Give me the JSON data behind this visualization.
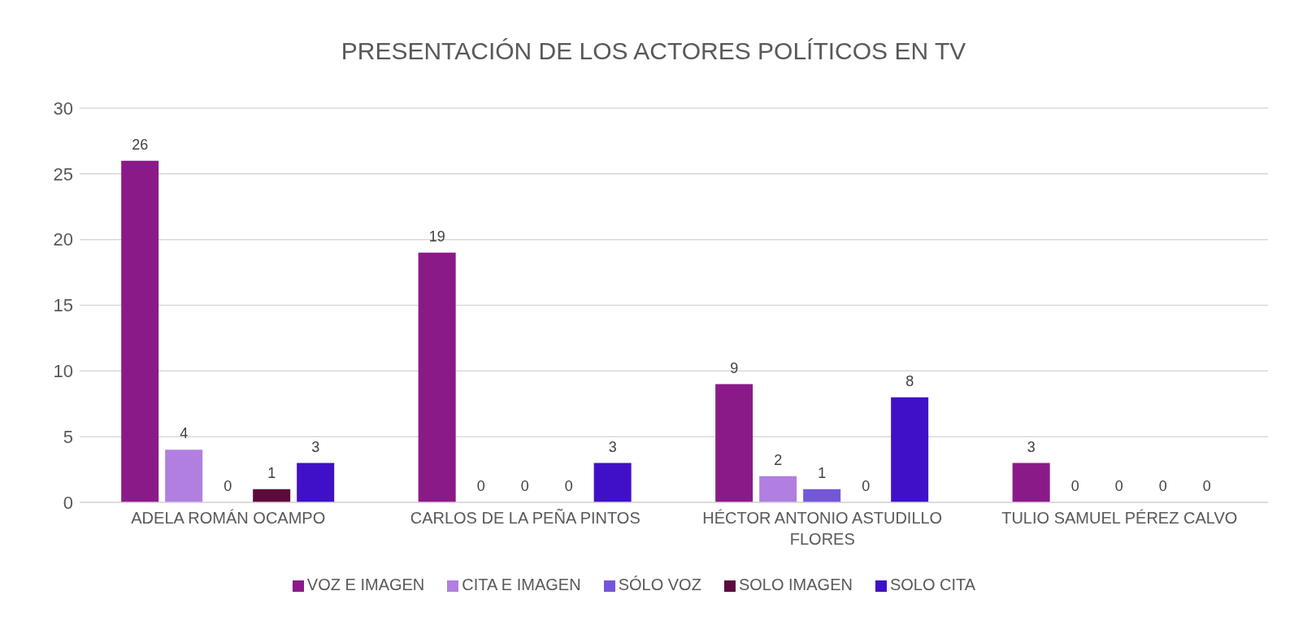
{
  "chart_data": {
    "type": "bar",
    "title": "PRESENTACIÓN DE LOS ACTORES POLÍTICOS EN TV",
    "categories": [
      "ADELA ROMÁN OCAMPO",
      "CARLOS DE LA PEÑA PINTOS",
      "HÉCTOR ANTONIO ASTUDILLO FLORES",
      "TULIO SAMUEL PÉREZ CALVO"
    ],
    "series": [
      {
        "name": "VOZ E IMAGEN",
        "color": "#8b1a89",
        "values": [
          26,
          19,
          9,
          3
        ]
      },
      {
        "name": "CITA E IMAGEN",
        "color": "#b07fe0",
        "values": [
          4,
          0,
          2,
          0
        ]
      },
      {
        "name": "SÓLO VOZ",
        "color": "#7357d8",
        "values": [
          0,
          0,
          1,
          0
        ]
      },
      {
        "name": "SOLO IMAGEN",
        "color": "#5c0a3c",
        "values": [
          1,
          0,
          0,
          0
        ]
      },
      {
        "name": "SOLO CITA",
        "color": "#4010c8",
        "values": [
          3,
          3,
          8,
          0
        ]
      }
    ],
    "ylim": [
      0,
      30
    ],
    "yticks": [
      0,
      5,
      10,
      15,
      20,
      25,
      30
    ],
    "grid": "y",
    "legend": "bottom",
    "data_labels": true
  }
}
